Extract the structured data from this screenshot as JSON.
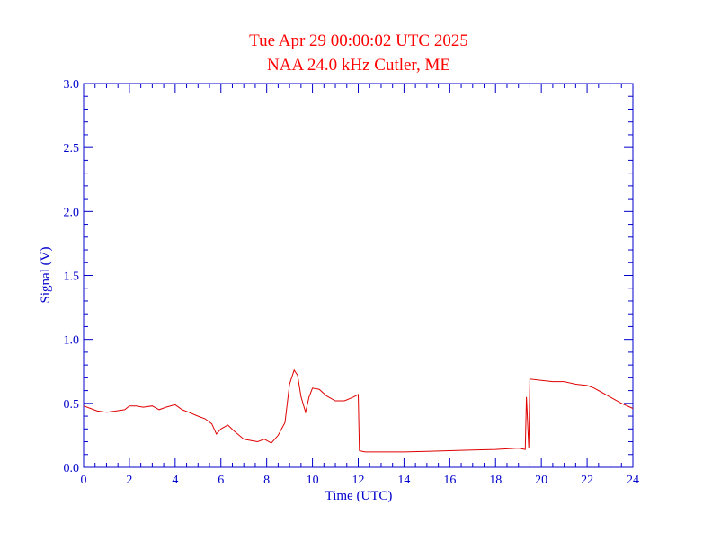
{
  "colors": {
    "title": "#ff0000",
    "axes": "#0000cc",
    "series": "#e00000",
    "background": "#ffffff"
  },
  "chart_data": {
    "type": "line",
    "title": "Tue Apr 29 00:00:02 UTC 2025",
    "subtitle": "NAA 24.0 kHz Cutler, ME",
    "xlabel": "Time (UTC)",
    "ylabel": "Signal (V)",
    "xlim": [
      0,
      24
    ],
    "ylim": [
      0.0,
      3.0
    ],
    "xticks": [
      "0",
      "2",
      "4",
      "6",
      "8",
      "10",
      "12",
      "14",
      "16",
      "18",
      "20",
      "22",
      "24"
    ],
    "yticks": [
      "0.0",
      "0.5",
      "1.0",
      "1.5",
      "2.0",
      "2.5",
      "3.0"
    ],
    "grid": false,
    "series": [
      {
        "x": [
          0.0,
          0.3,
          0.6,
          1.0,
          1.4,
          1.8,
          2.0,
          2.3,
          2.6,
          3.0,
          3.3,
          3.6,
          4.0,
          4.3,
          4.6,
          5.0,
          5.3,
          5.6,
          5.8,
          6.0,
          6.3,
          6.6,
          7.0,
          7.3,
          7.6,
          7.9,
          8.2,
          8.5,
          8.8,
          9.0,
          9.2,
          9.35,
          9.5,
          9.7,
          9.85,
          10.0,
          10.3,
          10.6,
          11.0,
          11.4,
          11.8,
          12.0,
          12.05,
          12.3,
          13.0,
          14.0,
          15.0,
          16.0,
          17.0,
          18.0,
          19.0,
          19.3,
          19.35,
          19.45,
          19.5,
          20.0,
          20.5,
          21.0,
          21.5,
          22.0,
          22.3,
          22.6,
          23.0,
          23.5,
          24.0
        ],
        "values": [
          0.48,
          0.46,
          0.44,
          0.43,
          0.44,
          0.45,
          0.48,
          0.48,
          0.47,
          0.48,
          0.45,
          0.47,
          0.49,
          0.45,
          0.43,
          0.4,
          0.38,
          0.34,
          0.26,
          0.3,
          0.33,
          0.28,
          0.22,
          0.21,
          0.2,
          0.22,
          0.19,
          0.25,
          0.35,
          0.65,
          0.76,
          0.72,
          0.55,
          0.43,
          0.55,
          0.62,
          0.61,
          0.56,
          0.52,
          0.52,
          0.55,
          0.57,
          0.13,
          0.12,
          0.12,
          0.12,
          0.125,
          0.13,
          0.135,
          0.14,
          0.15,
          0.14,
          0.55,
          0.15,
          0.69,
          0.68,
          0.67,
          0.67,
          0.65,
          0.64,
          0.62,
          0.59,
          0.55,
          0.5,
          0.46
        ]
      }
    ]
  }
}
